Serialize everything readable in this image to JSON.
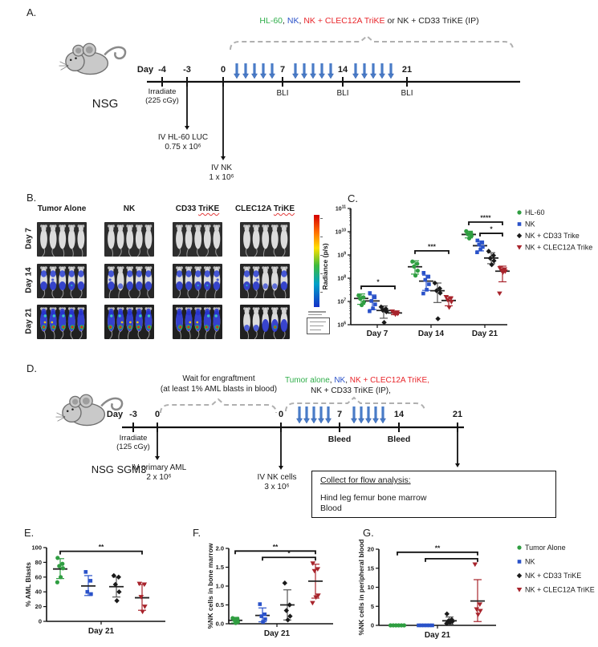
{
  "panels": {
    "a": {
      "label": "A.",
      "header_segments": [
        {
          "text": "HL-60",
          "color": "#2fae4a"
        },
        {
          "text": ", ",
          "color": "#222222"
        },
        {
          "text": "NK",
          "color": "#2a52c9"
        },
        {
          "text": ", ",
          "color": "#222222"
        },
        {
          "text": "NK + CLEC12A TriKE",
          "color": "#e8262b"
        },
        {
          "text": " or NK + CD33 TriKE (IP)",
          "color": "#222222"
        }
      ],
      "day_word": "Day",
      "ticks": [
        "-4",
        "-3",
        "0",
        "7",
        "14",
        "21"
      ],
      "irradiate": [
        "Irradiate",
        "(225 cGy)"
      ],
      "bli": "BLI",
      "inj1": [
        "IV HL-60 LUC",
        "0.75 x 10⁶"
      ],
      "inj2": [
        "IV NK",
        "1 x 10⁶"
      ],
      "mouse_label": "NSG"
    },
    "b": {
      "label": "B.",
      "columns": [
        {
          "pre": "Tumor Alone",
          "trike": ""
        },
        {
          "pre": "NK",
          "trike": ""
        },
        {
          "pre": "CD33 ",
          "trike": "TriKE"
        },
        {
          "pre": "CLEC12A ",
          "trike": "TriKE"
        }
      ],
      "rows": [
        "Day 7",
        "Day 14",
        "Day 21"
      ],
      "mice_per_image": 5,
      "intensity": [
        [
          "none",
          "none",
          "none",
          "none"
        ],
        [
          "medium",
          "medium_low",
          "medium",
          "medium_low"
        ],
        [
          "heavy",
          "heavy",
          "heavy",
          "partial"
        ]
      ]
    },
    "d": {
      "label": "D.",
      "wait_lines": [
        "Wait for engraftment",
        "(at least 1% AML blasts in blood)"
      ],
      "header_line1_segments": [
        {
          "text": "Tumor alone",
          "color": "#2fae4a"
        },
        {
          "text": ", ",
          "color": "#222222"
        },
        {
          "text": "NK",
          "color": "#2a52c9"
        },
        {
          "text": ", ",
          "color": "#222222"
        },
        {
          "text": "NK + CLEC12A TriKE,",
          "color": "#e8262b"
        }
      ],
      "header_line2": "NK + CD33 TriKE (IP),",
      "day_word": "Day",
      "ticks": [
        "-3",
        "0",
        "0",
        "7",
        "14",
        "21"
      ],
      "irradiate": [
        "Irradiate",
        "(125 cGy)"
      ],
      "bleed": "Bleed",
      "inj1": [
        "IV primary AML",
        "2 x 10⁶"
      ],
      "inj2": [
        "IV NK cells",
        "3 x 10⁶"
      ],
      "mouse_label": "NSG SGM3",
      "box_title": "Collect for flow analysis:",
      "box_lines": [
        "Hind leg femur bone marrow",
        "Blood"
      ]
    },
    "e_label": "E.",
    "f_label": "F.",
    "g_label": "G."
  },
  "chart_data": [
    {
      "id": "c",
      "type": "scatter",
      "title": "",
      "ylabel": "Radiance (p/s)",
      "yscale": "log",
      "ylim": [
        1000000.0,
        100000000000.0
      ],
      "ytick_exponents": [
        6,
        7,
        8,
        9,
        10,
        11
      ],
      "categories": [
        "Day 7",
        "Day 14",
        "Day 21"
      ],
      "legend": [
        {
          "label": "HL-60",
          "marker": "circle",
          "color": "#2f9e41"
        },
        {
          "label": "NK",
          "marker": "square",
          "color": "#2a52c9"
        },
        {
          "label": "NK + CD33 Trike",
          "marker": "diamond",
          "color": "#1a1a1a"
        },
        {
          "label": "NK + CLEC12A Trike",
          "marker": "tri",
          "color": "#a8242c"
        }
      ],
      "groups": [
        {
          "name": "HL-60",
          "marker": "circle",
          "color": "#2f9e41",
          "data": [
            [
              18000000.0,
              15000000.0,
              13000000.0,
              9500000.0,
              7000000.0
            ],
            [
              520000000.0,
              420000000.0,
              320000000.0,
              210000000.0,
              130000000.0
            ],
            [
              10500000000.0,
              8800000000.0,
              7800000000.0,
              6600000000.0,
              5200000000.0
            ]
          ],
          "mean": [
            13500000.0,
            310000000.0,
            7600000000.0
          ],
          "err_lo": [
            7500000.0,
            150000000.0,
            5400000000.0
          ],
          "err_hi": [
            21000000.0,
            560000000.0,
            10500000000.0
          ]
        },
        {
          "name": "NK",
          "marker": "square",
          "color": "#2a52c9",
          "data": [
            [
              23000000.0,
              15000000.0,
              10500000.0,
              7500000.0,
              5000000.0,
              3800000.0
            ],
            [
              170000000.0,
              115000000.0,
              85000000.0,
              55000000.0,
              32000000.0,
              22000000.0
            ],
            [
              4200000000.0,
              3400000000.0,
              2800000000.0,
              2200000000.0,
              1700000000.0,
              1300000000.0
            ]
          ],
          "mean": [
            10500000.0,
            75000000.0,
            2500000000.0
          ],
          "err_lo": [
            4500000.0,
            30000000.0,
            1500000000.0
          ],
          "err_hi": [
            19000000.0,
            135000000.0,
            4000000000.0
          ]
        },
        {
          "name": "NK + CD33 Trike",
          "marker": "diamond",
          "color": "#1a1a1a",
          "data": [
            [
              5800000.0,
              4800000.0,
              4200000.0,
              3600000.0,
              1250000.0
            ],
            [
              62000000.0,
              36000000.0,
              29000000.0,
              23000000.0,
              1800000.0
            ],
            [
              1450000000.0,
              950000000.0,
              720000000.0,
              560000000.0,
              380000000.0
            ]
          ],
          "mean": [
            4100000.0,
            29000000.0,
            740000000.0
          ],
          "err_lo": [
            1900000.0,
            9000000.0,
            420000000.0
          ],
          "err_hi": [
            6400000.0,
            62000000.0,
            1250000000.0
          ]
        },
        {
          "name": "NK + CLEC12A Trike",
          "marker": "tri",
          "color": "#a8242c",
          "data": [
            [
              3700000.0,
              3400000.0,
              3150000.0,
              2950000.0,
              2750000.0
            ],
            [
              15500000.0,
              13500000.0,
              11500000.0,
              9500000.0,
              5500000.0
            ],
            [
              270000000.0,
              240000000.0,
              215000000.0,
              195000000.0,
              175000000.0,
              22000000.0
            ]
          ],
          "mean": [
            3200000.0,
            11000000.0,
            200000000.0
          ],
          "err_lo": [
            2700000.0,
            6500000.0,
            70000000.0
          ],
          "err_hi": [
            3800000.0,
            16000000.0,
            330000000.0
          ]
        }
      ],
      "significance": [
        {
          "cat": 0,
          "from": 0,
          "to": 3,
          "label": "*",
          "y": 45000000.0
        },
        {
          "cat": 1,
          "from": 0,
          "to": 3,
          "label": "***",
          "y": 1500000000.0
        },
        {
          "cat": 2,
          "from": 0,
          "to": 3,
          "label": "****",
          "y": 26000000000.0
        },
        {
          "cat": 2,
          "from": 1,
          "to": 3,
          "label": "*",
          "y": 8500000000.0
        }
      ]
    },
    {
      "id": "e",
      "type": "scatter",
      "ylabel": "% AML Blasts",
      "yscale": "linear",
      "ylim": [
        0,
        100
      ],
      "yticks": [
        0,
        20,
        40,
        60,
        80,
        100
      ],
      "ytick_labels": [
        "0",
        "20",
        "40",
        "60",
        "80",
        "100"
      ],
      "categories": [
        "Day 21"
      ],
      "groups": [
        {
          "name": "Tumor Alone",
          "marker": "circle",
          "color": "#2f9e41",
          "data": [
            [
              86,
              78,
              75,
              72,
              60,
              53
            ]
          ],
          "mean": [
            71
          ],
          "err_lo": [
            58
          ],
          "err_hi": [
            85
          ]
        },
        {
          "name": "NK",
          "marker": "square",
          "color": "#2a52c9",
          "data": [
            [
              67,
              55,
              40,
              37
            ]
          ],
          "mean": [
            48
          ],
          "err_lo": [
            35
          ],
          "err_hi": [
            62
          ]
        },
        {
          "name": "NK + CD33 TriKE",
          "marker": "diamond",
          "color": "#1a1a1a",
          "data": [
            [
              62,
              60,
              50,
              40,
              28
            ]
          ],
          "mean": [
            47
          ],
          "err_lo": [
            33
          ],
          "err_hi": [
            60
          ]
        },
        {
          "name": "NK + CLEC12A TriKE",
          "marker": "tri",
          "color": "#a8242c",
          "data": [
            [
              51,
              50,
              33,
              20,
              13
            ]
          ],
          "mean": [
            32
          ],
          "err_lo": [
            15
          ],
          "err_hi": [
            50
          ]
        }
      ],
      "significance": [
        {
          "cat": 0,
          "from": 0,
          "to": 3,
          "label": "**",
          "y": 95
        }
      ]
    },
    {
      "id": "f",
      "type": "scatter",
      "ylabel": "%NK cells in bone marrow",
      "yscale": "linear",
      "ylim": [
        0,
        2.0
      ],
      "yticks": [
        0,
        0.5,
        1.0,
        1.5,
        2.0
      ],
      "ytick_labels": [
        "0.0",
        "0.5",
        "1.0",
        "1.5",
        "2.0"
      ],
      "categories": [
        "Day 21"
      ],
      "groups": [
        {
          "name": "Tumor Alone",
          "marker": "circle",
          "color": "#2f9e41",
          "data": [
            [
              0.15,
              0.13,
              0.1,
              0.05,
              0.02
            ]
          ],
          "mean": [
            0.09
          ],
          "err_lo": [
            0.02
          ],
          "err_hi": [
            0.17
          ]
        },
        {
          "name": "NK",
          "marker": "square",
          "color": "#2a52c9",
          "data": [
            [
              0.52,
              0.25,
              0.2,
              0.12,
              0.05
            ]
          ],
          "mean": [
            0.22
          ],
          "err_lo": [
            0.05
          ],
          "err_hi": [
            0.42
          ]
        },
        {
          "name": "NK + CD33 TriKE",
          "marker": "diamond",
          "color": "#1a1a1a",
          "data": [
            [
              1.08,
              0.5,
              0.35,
              0.2,
              0.1
            ]
          ],
          "mean": [
            0.5
          ],
          "err_lo": [
            0.1
          ],
          "err_hi": [
            0.9
          ]
        },
        {
          "name": "NK + CLEC12A TriKE",
          "marker": "tri",
          "color": "#a8242c",
          "data": [
            [
              1.6,
              1.45,
              1.4,
              0.75,
              0.7,
              0.55
            ]
          ],
          "mean": [
            1.13
          ],
          "err_lo": [
            0.68
          ],
          "err_hi": [
            1.58
          ]
        }
      ],
      "significance": [
        {
          "cat": 0,
          "from": 0,
          "to": 3,
          "label": "**",
          "y": 1.93
        },
        {
          "cat": 0,
          "from": 1,
          "to": 3,
          "label": "*",
          "y": 1.76
        }
      ]
    },
    {
      "id": "g",
      "type": "scatter",
      "ylabel": "%NK cells in peripheral blood",
      "yscale": "linear",
      "ylim": [
        0,
        20
      ],
      "yticks": [
        0,
        5,
        10,
        15,
        20
      ],
      "ytick_labels": [
        "0",
        "5",
        "10",
        "15",
        "20"
      ],
      "categories": [
        "Day 21"
      ],
      "legend": [
        {
          "label": "Tumor Alone",
          "marker": "circle",
          "color": "#2f9e41"
        },
        {
          "label": "NK",
          "marker": "square",
          "color": "#2a52c9"
        },
        {
          "label": "NK + CD33 TriKE",
          "marker": "diamond",
          "color": "#1a1a1a"
        },
        {
          "label": "NK + CLEC12A TriKE",
          "marker": "tri",
          "color": "#a8242c"
        }
      ],
      "groups": [
        {
          "name": "Tumor Alone",
          "marker": "circle",
          "color": "#2f9e41",
          "data": [
            [
              0,
              0,
              0,
              0,
              0,
              0
            ]
          ],
          "mean": null,
          "err_lo": null,
          "err_hi": null
        },
        {
          "name": "NK",
          "marker": "square",
          "color": "#2a52c9",
          "data": [
            [
              0,
              0,
              0,
              0,
              0,
              0
            ]
          ],
          "mean": null,
          "err_lo": null,
          "err_hi": null
        },
        {
          "name": "NK + CD33 TriKE",
          "marker": "diamond",
          "color": "#1a1a1a",
          "data": [
            [
              3.0,
              1.5,
              1.2,
              1.0,
              0.8,
              0.5
            ]
          ],
          "mean": [
            1.2
          ],
          "err_lo": [
            0.3
          ],
          "err_hi": [
            2.2
          ]
        },
        {
          "name": "NK + CLEC12A TriKE",
          "marker": "tri",
          "color": "#a8242c",
          "data": [
            [
              16,
              5.5,
              4.2,
              3.8,
              2.8
            ]
          ],
          "mean": [
            6.4
          ],
          "err_lo": [
            1.0
          ],
          "err_hi": [
            12.0
          ]
        }
      ],
      "significance": [
        {
          "cat": 0,
          "from": 0,
          "to": 3,
          "label": "**",
          "y": 19.2
        },
        {
          "cat": 0,
          "from": 1,
          "to": 3,
          "label": "",
          "y": 17.5
        }
      ]
    }
  ]
}
